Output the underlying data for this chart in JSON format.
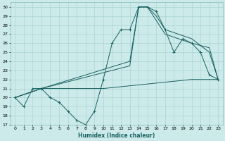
{
  "xlabel": "Humidex (Indice chaleur)",
  "bg_color": "#cceaea",
  "grid_color": "#aad4d4",
  "line_color": "#1a6060",
  "ylim": [
    17,
    30.5
  ],
  "xlim": [
    -0.5,
    23.5
  ],
  "yticks": [
    17,
    18,
    19,
    20,
    21,
    22,
    23,
    24,
    25,
    26,
    27,
    28,
    29,
    30
  ],
  "xticks": [
    0,
    1,
    2,
    3,
    4,
    5,
    6,
    7,
    8,
    9,
    10,
    11,
    12,
    13,
    14,
    15,
    16,
    17,
    18,
    19,
    20,
    21,
    22,
    23
  ],
  "lines": [
    {
      "x": [
        0,
        1,
        2,
        3,
        4,
        5,
        6,
        7,
        8,
        9,
        10,
        11,
        12,
        13,
        14,
        15,
        16,
        17,
        18,
        19,
        20,
        21,
        22,
        23
      ],
      "y": [
        20,
        19,
        21,
        21,
        20,
        19.5,
        18.5,
        17.5,
        17,
        18.5,
        22,
        26,
        27.5,
        27.5,
        30,
        30,
        29.5,
        27.5,
        25,
        26.5,
        26,
        25,
        22.5,
        22
      ],
      "marker": true
    },
    {
      "x": [
        0,
        3,
        13,
        14,
        15,
        16,
        17,
        20,
        22,
        23
      ],
      "y": [
        20,
        21,
        24,
        30,
        30,
        29,
        27.5,
        26.5,
        25,
        22
      ],
      "marker": false
    },
    {
      "x": [
        0,
        3,
        13,
        14,
        15,
        17,
        20,
        22,
        23
      ],
      "y": [
        20,
        21,
        23.5,
        30,
        30,
        27,
        26,
        25.5,
        22
      ],
      "marker": false
    },
    {
      "x": [
        0,
        3,
        10,
        15,
        20,
        23
      ],
      "y": [
        20,
        21,
        21,
        21.5,
        22,
        22
      ],
      "marker": false
    }
  ]
}
